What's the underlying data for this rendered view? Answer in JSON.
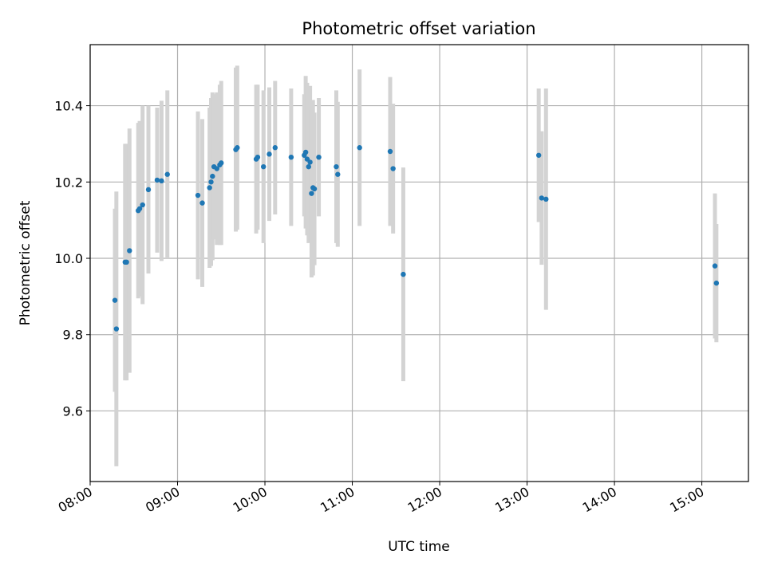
{
  "chart_data": {
    "type": "scatter",
    "title": "Photometric offset variation",
    "xlabel": "UTC time",
    "ylabel": "Photometric offset",
    "x_axis": {
      "kind": "time",
      "range": [
        "08:00",
        "15:32"
      ],
      "ticks": [
        "08:00",
        "09:00",
        "10:00",
        "11:00",
        "12:00",
        "13:00",
        "14:00",
        "15:00"
      ]
    },
    "y_axis": {
      "range": [
        9.415,
        10.56
      ],
      "ticks": [
        "9.6",
        "9.8",
        "10.0",
        "10.2",
        "10.4"
      ]
    },
    "grid": true,
    "colors": {
      "point": "#1f77b4",
      "error_bar": "#d3d3d3",
      "grid": "#b0b0b0"
    },
    "points": [
      {
        "t": "08:17",
        "y": 9.89,
        "err": 0.24
      },
      {
        "t": "08:18",
        "y": 9.815,
        "err": 0.36
      },
      {
        "t": "08:24",
        "y": 9.99,
        "err": 0.31
      },
      {
        "t": "08:25",
        "y": 9.99,
        "err": 0.31
      },
      {
        "t": "08:27",
        "y": 10.02,
        "err": 0.32
      },
      {
        "t": "08:33",
        "y": 10.125,
        "err": 0.23
      },
      {
        "t": "08:34",
        "y": 10.13,
        "err": 0.23
      },
      {
        "t": "08:36",
        "y": 10.14,
        "err": 0.26
      },
      {
        "t": "08:40",
        "y": 10.18,
        "err": 0.22
      },
      {
        "t": "08:46",
        "y": 10.205,
        "err": 0.19
      },
      {
        "t": "08:49",
        "y": 10.203,
        "err": 0.21
      },
      {
        "t": "08:53",
        "y": 10.22,
        "err": 0.22
      },
      {
        "t": "09:14",
        "y": 10.165,
        "err": 0.22
      },
      {
        "t": "09:17",
        "y": 10.145,
        "err": 0.22
      },
      {
        "t": "09:22",
        "y": 10.185,
        "err": 0.21
      },
      {
        "t": "09:23",
        "y": 10.2,
        "err": 0.22
      },
      {
        "t": "09:24",
        "y": 10.215,
        "err": 0.22
      },
      {
        "t": "09:25",
        "y": 10.24,
        "err": 0.19
      },
      {
        "t": "09:27",
        "y": 10.235,
        "err": 0.2
      },
      {
        "t": "09:29",
        "y": 10.245,
        "err": 0.21
      },
      {
        "t": "09:30",
        "y": 10.25,
        "err": 0.215
      },
      {
        "t": "09:40",
        "y": 10.285,
        "err": 0.215
      },
      {
        "t": "09:41",
        "y": 10.29,
        "err": 0.215
      },
      {
        "t": "09:54",
        "y": 10.26,
        "err": 0.195
      },
      {
        "t": "09:55",
        "y": 10.265,
        "err": 0.19
      },
      {
        "t": "09:59",
        "y": 10.24,
        "err": 0.2
      },
      {
        "t": "10:03",
        "y": 10.273,
        "err": 0.175
      },
      {
        "t": "10:07",
        "y": 10.29,
        "err": 0.175
      },
      {
        "t": "10:18",
        "y": 10.265,
        "err": 0.18
      },
      {
        "t": "10:27",
        "y": 10.27,
        "err": 0.16
      },
      {
        "t": "10:28",
        "y": 10.278,
        "err": 0.2
      },
      {
        "t": "10:29",
        "y": 10.26,
        "err": 0.2
      },
      {
        "t": "10:30",
        "y": 10.24,
        "err": 0.2
      },
      {
        "t": "10:31",
        "y": 10.252,
        "err": 0.2
      },
      {
        "t": "10:32",
        "y": 10.17,
        "err": 0.22
      },
      {
        "t": "10:33",
        "y": 10.185,
        "err": 0.23
      },
      {
        "t": "10:34",
        "y": 10.182,
        "err": 0.2
      },
      {
        "t": "10:37",
        "y": 10.265,
        "err": 0.155
      },
      {
        "t": "10:49",
        "y": 10.24,
        "err": 0.2
      },
      {
        "t": "10:50",
        "y": 10.22,
        "err": 0.19
      },
      {
        "t": "11:05",
        "y": 10.29,
        "err": 0.205
      },
      {
        "t": "11:26",
        "y": 10.28,
        "err": 0.195
      },
      {
        "t": "11:28",
        "y": 10.235,
        "err": 0.17
      },
      {
        "t": "11:35",
        "y": 9.958,
        "err": 0.28
      },
      {
        "t": "13:08",
        "y": 10.27,
        "err": 0.175
      },
      {
        "t": "13:10",
        "y": 10.158,
        "err": 0.175
      },
      {
        "t": "13:13",
        "y": 10.155,
        "err": 0.29
      },
      {
        "t": "15:09",
        "y": 9.98,
        "err": 0.19
      },
      {
        "t": "15:10",
        "y": 9.935,
        "err": 0.155
      }
    ]
  }
}
